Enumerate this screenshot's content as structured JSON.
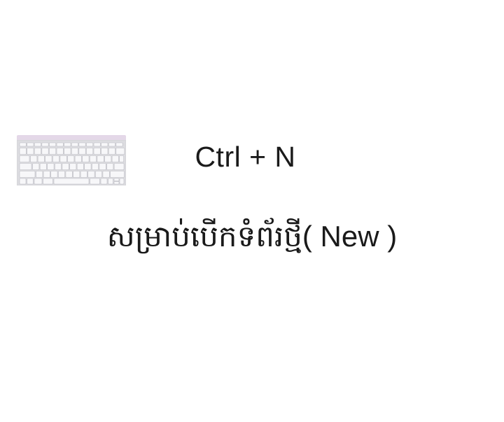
{
  "image": {
    "keyboard_icon": "keyboard-icon",
    "colors": {
      "background": "#ffffff",
      "text": "#1a1a1a",
      "keyboard_top": "#e4d8e8",
      "keyboard_body": "#d2d2d6",
      "keyboard_keys": "#f6f6f8"
    }
  },
  "shortcut": {
    "keys": "Ctrl + N"
  },
  "caption": {
    "khmer": "សម្រាប់បើកទំព័រថ្មី",
    "english": "( New )"
  }
}
